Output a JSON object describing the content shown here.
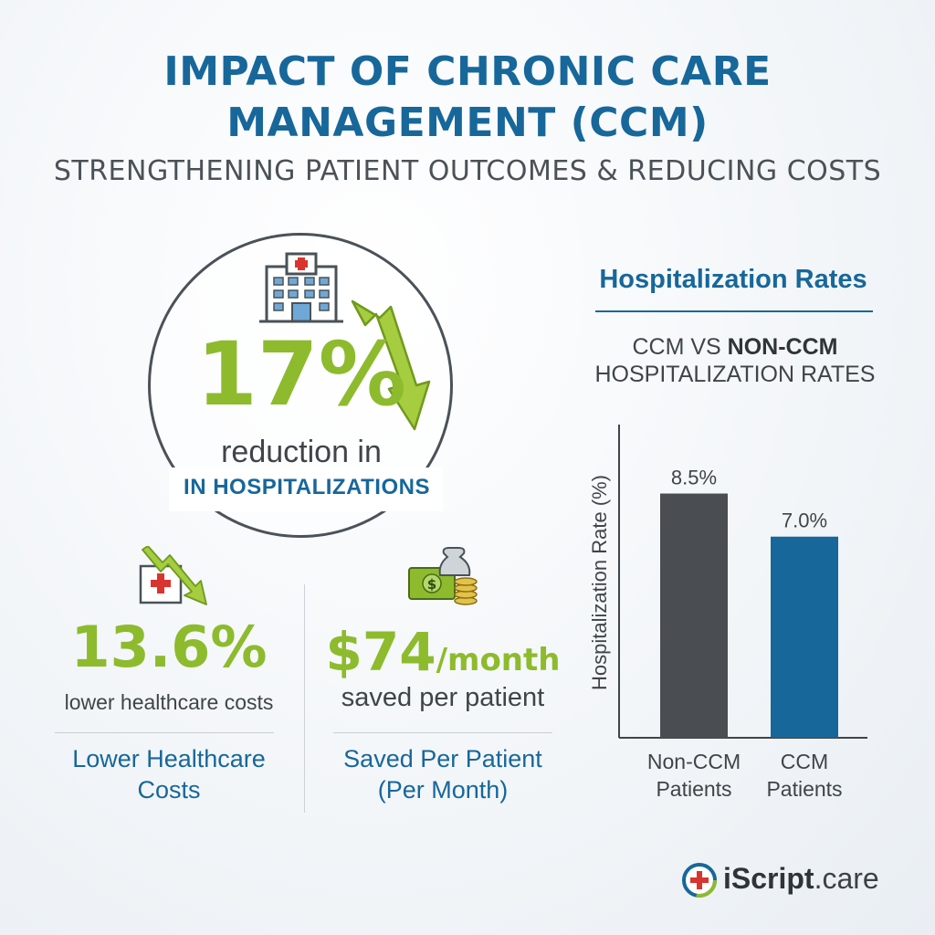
{
  "header": {
    "title_line1": "IMPACT OF CHRONIC CARE",
    "title_line2": "MANAGEMENT (CCM)",
    "subtitle": "STRENGTHENING PATIENT OUTCOMES & REDUCING COSTS"
  },
  "main_stat": {
    "value": "17%",
    "description": "reduction in",
    "label": "IN HOSPITALIZATIONS",
    "icon": "hospital-building-icon"
  },
  "stats": [
    {
      "value": "13.6%",
      "description": "lower healthcare costs",
      "label_line1": "Lower Healthcare",
      "label_line2": "Costs",
      "icon": "hospital-cost-down-icon"
    },
    {
      "value": "$74",
      "suffix": "/month",
      "description": "saved per patient",
      "label_line1": "Saved Per Patient",
      "label_line2": "(Per Month)",
      "icon": "money-bag-icon"
    }
  ],
  "chart_heading": "Hospitalization Rates",
  "chart_subtitle": {
    "part1": "CCM VS ",
    "part1_bold": "NON-CCM",
    "line2": "HOSPITALIZATION RATES"
  },
  "chart_data": {
    "type": "bar",
    "title": "Hospitalization Rates",
    "subtitle": "CCM VS NON-CCM HOSPITALIZATION RATES",
    "ylabel": "Hospitalization Rate (%)",
    "xlabel": "",
    "categories": [
      [
        "Non-CCM",
        "Patients"
      ],
      [
        "CCM",
        "Patients"
      ]
    ],
    "values": [
      8.5,
      7.0
    ],
    "value_labels": [
      "8.5%",
      "7.0%"
    ],
    "colors": [
      "#4a4e52",
      "#17679a"
    ],
    "ylim": [
      0,
      10.9
    ],
    "grid": false
  },
  "colors": {
    "accent_green": "#8dbb2d",
    "accent_blue": "#17679a",
    "text_dark": "#3e4549"
  },
  "brand": {
    "name_bold": "iScript",
    "name_suffix": ".care",
    "icon": "medical-cross-logo-icon"
  }
}
